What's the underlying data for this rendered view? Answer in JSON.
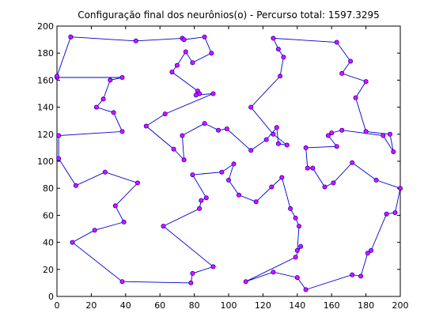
{
  "chart_data": {
    "type": "line",
    "title": "Configuração final dos neurônios(o) - Percurso total: 1597.3295",
    "xlabel": "",
    "ylabel": "",
    "xlim": [
      0,
      200
    ],
    "ylim": [
      0,
      200
    ],
    "x_ticks": [
      "0",
      "20",
      "40",
      "60",
      "80",
      "100",
      "120",
      "140",
      "160",
      "180",
      "200"
    ],
    "y_ticks": [
      "0",
      "20",
      "40",
      "60",
      "80",
      "100",
      "120",
      "140",
      "160",
      "180",
      "200"
    ],
    "grid": false,
    "line_color": "#0000cc",
    "marker_face_color": "#ff00ff",
    "marker_edge_color": "#0000cc",
    "points": [
      [
        8,
        192
      ],
      [
        46,
        189
      ],
      [
        73,
        191
      ],
      [
        74,
        190
      ],
      [
        86,
        192
      ],
      [
        90,
        180
      ],
      [
        79,
        173
      ],
      [
        75,
        181
      ],
      [
        70,
        171
      ],
      [
        67,
        166
      ],
      [
        82,
        152
      ],
      [
        83,
        150
      ],
      [
        81,
        149
      ],
      [
        91,
        150
      ],
      [
        63,
        135
      ],
      [
        52,
        126
      ],
      [
        68,
        109
      ],
      [
        74,
        101
      ],
      [
        73,
        119
      ],
      [
        86,
        128
      ],
      [
        94,
        123
      ],
      [
        99,
        124
      ],
      [
        113,
        108
      ],
      [
        122,
        116
      ],
      [
        128,
        125
      ],
      [
        129,
        113
      ],
      [
        134,
        112
      ],
      [
        126,
        120
      ],
      [
        113,
        140
      ],
      [
        130,
        163
      ],
      [
        132,
        177
      ],
      [
        129,
        183
      ],
      [
        126,
        191
      ],
      [
        163,
        188
      ],
      [
        171,
        174
      ],
      [
        166,
        165
      ],
      [
        180,
        159
      ],
      [
        174,
        147
      ],
      [
        180,
        122
      ],
      [
        194,
        120
      ],
      [
        196,
        107
      ],
      [
        190,
        119
      ],
      [
        166,
        123
      ],
      [
        160,
        121
      ],
      [
        158,
        119
      ],
      [
        163,
        111
      ],
      [
        145,
        110
      ],
      [
        146,
        95
      ],
      [
        149,
        95
      ],
      [
        156,
        81
      ],
      [
        161,
        84
      ],
      [
        172,
        99
      ],
      [
        186,
        86
      ],
      [
        200,
        80
      ],
      [
        197,
        62
      ],
      [
        192,
        61
      ],
      [
        183,
        34
      ],
      [
        181,
        32
      ],
      [
        177,
        15
      ],
      [
        172,
        16
      ],
      [
        145,
        5
      ],
      [
        140,
        14
      ],
      [
        126,
        18
      ],
      [
        110,
        11
      ],
      [
        139,
        29
      ],
      [
        142,
        37
      ],
      [
        140,
        34
      ],
      [
        141,
        52
      ],
      [
        139,
        58
      ],
      [
        136,
        65
      ],
      [
        131,
        88
      ],
      [
        125,
        81
      ],
      [
        116,
        70
      ],
      [
        106,
        75
      ],
      [
        100,
        86
      ],
      [
        103,
        98
      ],
      [
        96,
        92
      ],
      [
        79,
        90
      ],
      [
        87,
        73
      ],
      [
        84,
        71
      ],
      [
        83,
        65
      ],
      [
        62,
        52
      ],
      [
        91,
        22
      ],
      [
        79,
        17
      ],
      [
        78,
        10
      ],
      [
        38,
        11
      ],
      [
        9,
        40
      ],
      [
        22,
        49
      ],
      [
        39,
        55
      ],
      [
        34,
        67
      ],
      [
        47,
        84
      ],
      [
        28,
        92
      ],
      [
        11,
        82
      ],
      [
        1,
        102
      ],
      [
        1,
        119
      ],
      [
        38,
        122
      ],
      [
        33,
        136
      ],
      [
        23,
        140
      ],
      [
        27,
        146
      ],
      [
        31,
        160
      ],
      [
        38,
        162
      ],
      [
        0,
        162
      ],
      [
        0,
        163
      ],
      [
        8,
        192
      ]
    ]
  }
}
